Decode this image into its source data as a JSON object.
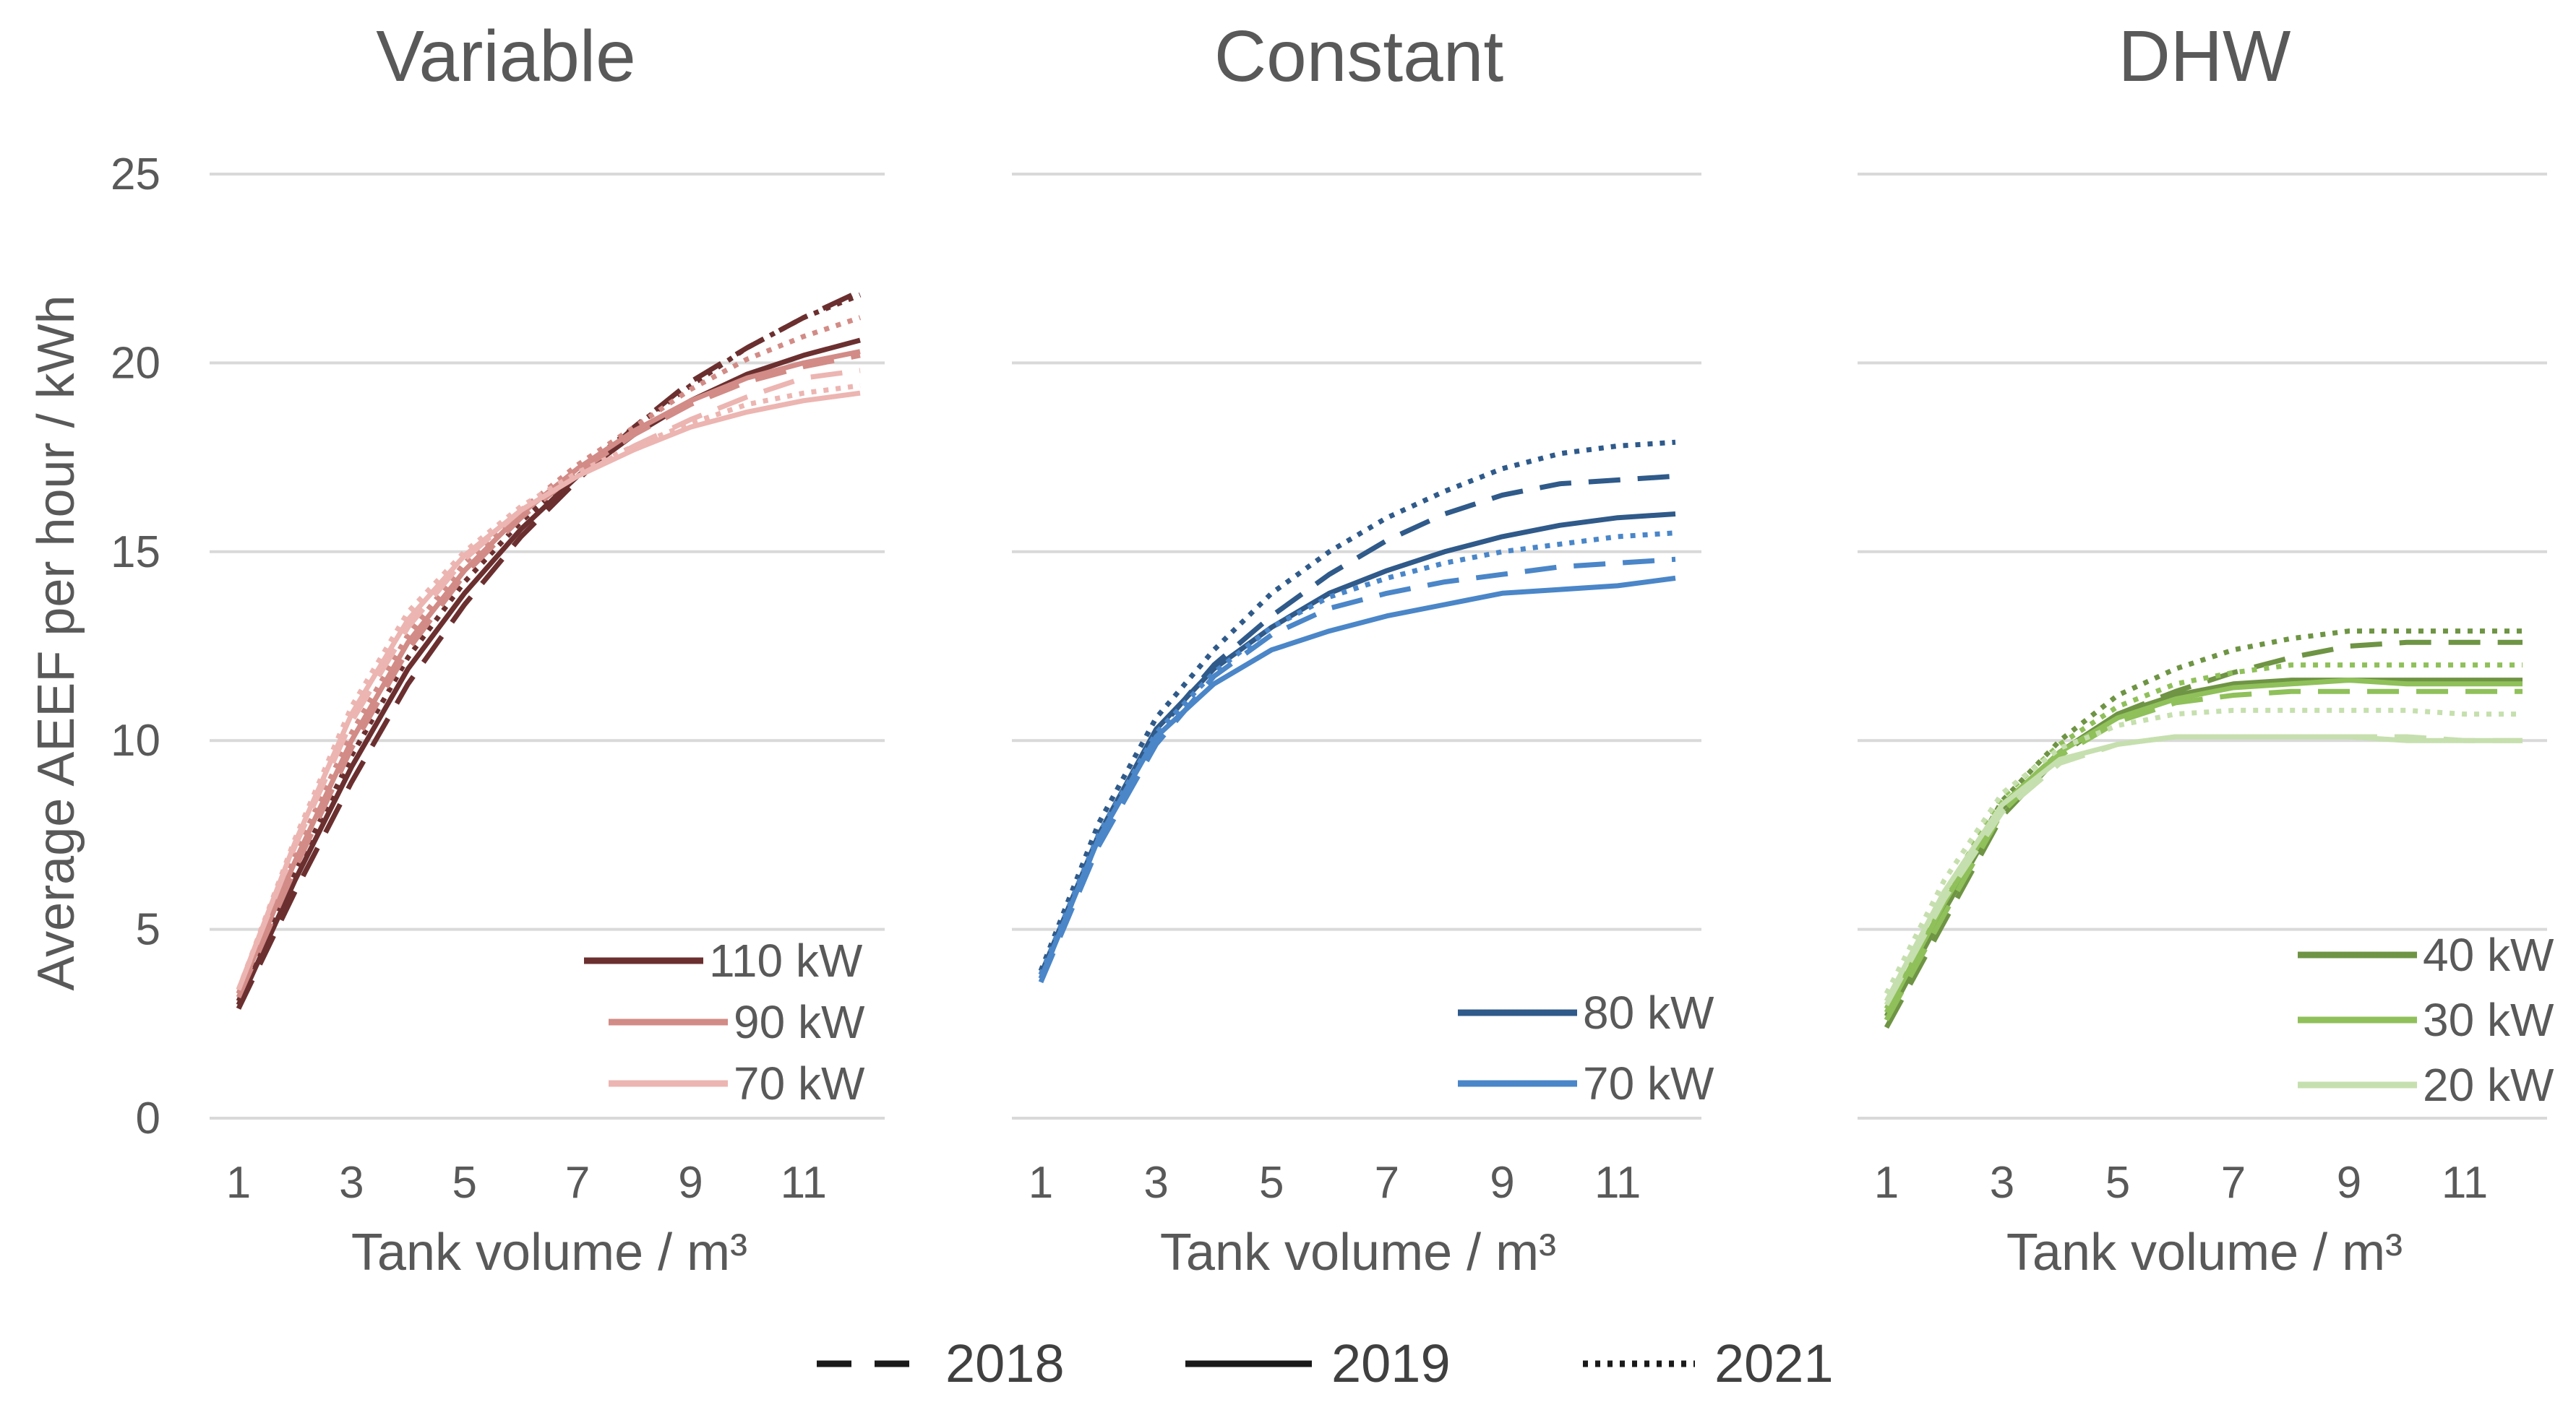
{
  "chart_data": {
    "type": "line",
    "ylabel": "Average AEEF per hour / kWh",
    "xlabel": "Tank volume / m³",
    "ylim": [
      0,
      25
    ],
    "yticks": [
      "0",
      "5",
      "10",
      "15",
      "20",
      "25"
    ],
    "xlim": [
      1,
      12
    ],
    "xticks": [
      "1",
      "3",
      "5",
      "7",
      "9",
      "11"
    ],
    "x": [
      1,
      2,
      3,
      4,
      5,
      6,
      7,
      8,
      9,
      10,
      11,
      12
    ],
    "year_legend": [
      {
        "label": "2018",
        "style": "dashed"
      },
      {
        "label": "2019",
        "style": "solid"
      },
      {
        "label": "2021",
        "style": "dotted"
      }
    ],
    "panels": [
      {
        "title": "Variable",
        "legend": [
          {
            "label": "110 kW",
            "color": "#6b2f2f"
          },
          {
            "label": "90 kW",
            "color": "#d28b86"
          },
          {
            "label": "70 kW",
            "color": "#ecb5b1"
          }
        ],
        "series": [
          {
            "name": "110 kW 2018",
            "color": "#6b2f2f",
            "style": "dashed",
            "values": [
              2.9,
              6.0,
              8.9,
              11.5,
              13.6,
              15.4,
              16.9,
              18.3,
              19.5,
              20.4,
              21.2,
              21.9
            ]
          },
          {
            "name": "110 kW 2019",
            "color": "#6b2f2f",
            "style": "solid",
            "values": [
              3.0,
              6.3,
              9.3,
              11.9,
              13.9,
              15.6,
              17.0,
              18.1,
              19.0,
              19.7,
              20.2,
              20.6
            ]
          },
          {
            "name": "110 kW 2021",
            "color": "#6b2f2f",
            "style": "dotted",
            "values": [
              3.1,
              6.5,
              9.6,
              12.2,
              14.2,
              15.8,
              17.1,
              18.3,
              19.4,
              20.4,
              21.2,
              21.8
            ]
          },
          {
            "name": "90 kW 2018",
            "color": "#d28b86",
            "style": "dashed",
            "values": [
              3.2,
              6.6,
              9.8,
              12.4,
              14.4,
              15.9,
              17.1,
              18.1,
              18.9,
              19.5,
              19.9,
              20.2
            ]
          },
          {
            "name": "90 kW 2019",
            "color": "#d28b86",
            "style": "solid",
            "values": [
              3.3,
              6.8,
              10.0,
              12.6,
              14.5,
              16.0,
              17.2,
              18.2,
              19.0,
              19.6,
              20.0,
              20.3
            ]
          },
          {
            "name": "90 kW 2021",
            "color": "#d28b86",
            "style": "dotted",
            "values": [
              3.3,
              7.0,
              10.2,
              12.8,
              14.7,
              16.1,
              17.3,
              18.3,
              19.3,
              20.1,
              20.7,
              21.2
            ]
          },
          {
            "name": "70 kW 2018",
            "color": "#ecb5b1",
            "style": "dashed",
            "values": [
              3.4,
              7.2,
              10.5,
              13.0,
              14.8,
              16.1,
              17.0,
              17.8,
              18.5,
              19.1,
              19.6,
              19.8
            ]
          },
          {
            "name": "70 kW 2019",
            "color": "#ecb5b1",
            "style": "solid",
            "values": [
              3.4,
              7.3,
              10.7,
              13.2,
              14.9,
              16.1,
              17.0,
              17.7,
              18.3,
              18.7,
              19.0,
              19.2
            ]
          },
          {
            "name": "70 kW 2021",
            "color": "#ecb5b1",
            "style": "dotted",
            "values": [
              3.4,
              7.4,
              10.9,
              13.4,
              15.0,
              16.2,
              17.1,
              17.8,
              18.4,
              18.9,
              19.2,
              19.4
            ]
          }
        ]
      },
      {
        "title": "Constant",
        "legend": [
          {
            "label": "80 kW",
            "color": "#2f5a8a"
          },
          {
            "label": "70 kW",
            "color": "#4a86c8"
          }
        ],
        "series": [
          {
            "name": "80 kW 2018",
            "color": "#2f5a8a",
            "style": "dashed",
            "values": [
              3.7,
              7.4,
              10.2,
              12.0,
              13.3,
              14.4,
              15.3,
              16.0,
              16.5,
              16.8,
              16.9,
              17.0
            ]
          },
          {
            "name": "80 kW 2019",
            "color": "#2f5a8a",
            "style": "solid",
            "values": [
              3.8,
              7.5,
              10.3,
              11.9,
              13.0,
              13.9,
              14.5,
              15.0,
              15.4,
              15.7,
              15.9,
              16.0
            ]
          },
          {
            "name": "80 kW 2021",
            "color": "#2f5a8a",
            "style": "dotted",
            "values": [
              3.9,
              7.8,
              10.6,
              12.4,
              13.9,
              15.0,
              15.9,
              16.6,
              17.2,
              17.6,
              17.8,
              17.9
            ]
          },
          {
            "name": "70 kW 2018",
            "color": "#4a86c8",
            "style": "dashed",
            "values": [
              3.6,
              7.2,
              9.9,
              11.7,
              12.8,
              13.5,
              13.9,
              14.2,
              14.4,
              14.6,
              14.7,
              14.8
            ]
          },
          {
            "name": "70 kW 2019",
            "color": "#4a86c8",
            "style": "solid",
            "values": [
              3.7,
              7.4,
              10.1,
              11.5,
              12.4,
              12.9,
              13.3,
              13.6,
              13.9,
              14.0,
              14.1,
              14.3
            ]
          },
          {
            "name": "70 kW 2021",
            "color": "#4a86c8",
            "style": "dotted",
            "values": [
              3.8,
              7.5,
              10.2,
              11.8,
              13.0,
              13.8,
              14.3,
              14.7,
              15.0,
              15.2,
              15.4,
              15.5
            ]
          }
        ]
      },
      {
        "title": "DHW",
        "legend": [
          {
            "label": "40 kW",
            "color": "#6e9444"
          },
          {
            "label": "30 kW",
            "color": "#8fc05a"
          },
          {
            "label": "20 kW",
            "color": "#c6dfae"
          }
        ],
        "series": [
          {
            "name": "40 kW 2018",
            "color": "#6e9444",
            "style": "dashed",
            "values": [
              2.4,
              5.2,
              8.0,
              9.6,
              10.7,
              11.3,
              11.8,
              12.2,
              12.5,
              12.6,
              12.6,
              12.6
            ]
          },
          {
            "name": "40 kW 2019",
            "color": "#6e9444",
            "style": "solid",
            "values": [
              2.6,
              5.5,
              8.2,
              9.7,
              10.7,
              11.2,
              11.5,
              11.6,
              11.6,
              11.6,
              11.6,
              11.6
            ]
          },
          {
            "name": "40 kW 2021",
            "color": "#6e9444",
            "style": "dotted",
            "values": [
              2.7,
              5.7,
              8.4,
              10.0,
              11.2,
              11.9,
              12.4,
              12.7,
              12.9,
              12.9,
              12.9,
              12.9
            ]
          },
          {
            "name": "30 kW 2018",
            "color": "#8fc05a",
            "style": "dashed",
            "values": [
              2.6,
              5.4,
              8.1,
              9.6,
              10.5,
              11.0,
              11.2,
              11.3,
              11.3,
              11.3,
              11.3,
              11.3
            ]
          },
          {
            "name": "30 kW 2019",
            "color": "#8fc05a",
            "style": "solid",
            "values": [
              2.8,
              5.7,
              8.3,
              9.7,
              10.6,
              11.1,
              11.4,
              11.5,
              11.6,
              11.5,
              11.5,
              11.5
            ]
          },
          {
            "name": "30 kW 2021",
            "color": "#8fc05a",
            "style": "dotted",
            "values": [
              2.9,
              5.9,
              8.5,
              9.9,
              10.9,
              11.5,
              11.8,
              12.0,
              12.0,
              12.0,
              12.0,
              12.0
            ]
          },
          {
            "name": "20 kW 2018",
            "color": "#c6dfae",
            "style": "dashed",
            "values": [
              3.0,
              5.8,
              8.1,
              9.4,
              9.9,
              10.1,
              10.1,
              10.1,
              10.1,
              10.1,
              10.0,
              10.0
            ]
          },
          {
            "name": "20 kW 2019",
            "color": "#c6dfae",
            "style": "solid",
            "values": [
              3.1,
              6.0,
              8.3,
              9.5,
              9.9,
              10.1,
              10.1,
              10.1,
              10.1,
              10.0,
              10.0,
              10.0
            ]
          },
          {
            "name": "20 kW 2021",
            "color": "#c6dfae",
            "style": "dotted",
            "values": [
              3.3,
              6.3,
              8.6,
              9.8,
              10.4,
              10.7,
              10.8,
              10.8,
              10.8,
              10.8,
              10.7,
              10.7
            ]
          }
        ]
      }
    ]
  }
}
